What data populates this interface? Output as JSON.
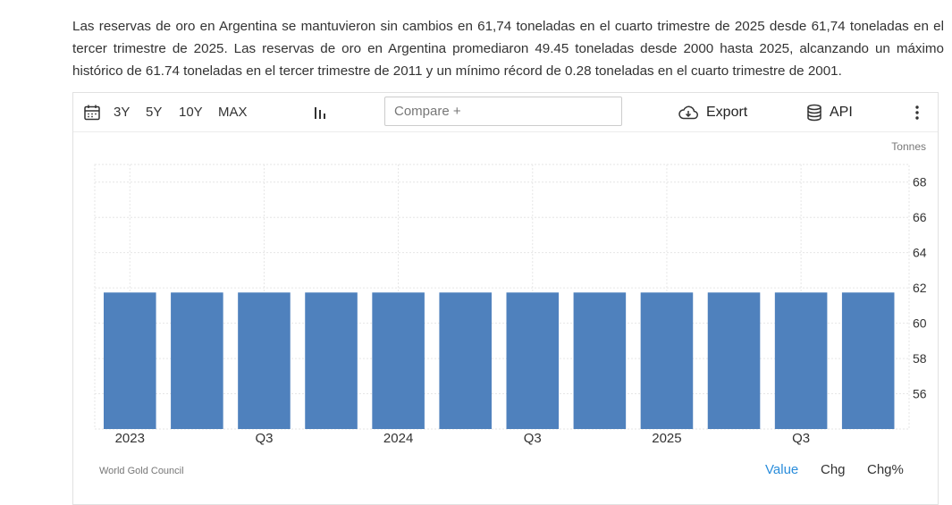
{
  "description": "Las reservas de oro en Argentina se mantuvieron sin cambios en 61,74 toneladas en el cuarto trimestre de 2025 desde 61,74 toneladas en el tercer trimestre de 2025. Las reservas de oro en Argentina promediaron 49.45 toneladas desde 2000 hasta 2025, alcanzando un máximo histórico de 61.74 toneladas en el tercer trimestre de 2011 y un mínimo récord de 0.28 toneladas en el cuarto trimestre de 2001.",
  "toolbar": {
    "ranges": [
      "3Y",
      "5Y",
      "10Y",
      "MAX"
    ],
    "compare_placeholder": "Compare +",
    "export_label": "Export",
    "api_label": "API",
    "icons": [
      "calendar-icon",
      "bar-chart-type-icon",
      "cloud-download-icon",
      "database-icon",
      "more-vert-icon"
    ]
  },
  "chart_data": {
    "type": "bar",
    "unit_label": "Tonnes",
    "categories": [
      "2023 Q1",
      "2023 Q2",
      "2023 Q3",
      "2023 Q4",
      "2024 Q1",
      "2024 Q2",
      "2024 Q3",
      "2024 Q4",
      "2025 Q1",
      "2025 Q2",
      "2025 Q3",
      "2025 Q4"
    ],
    "values": [
      61.74,
      61.74,
      61.74,
      61.74,
      61.74,
      61.74,
      61.74,
      61.74,
      61.74,
      61.74,
      61.74,
      61.74
    ],
    "x_tick_labels": [
      "2023",
      "",
      "Q3",
      "",
      "2024",
      "",
      "Q3",
      "",
      "2025",
      "",
      "Q3",
      ""
    ],
    "y_ticks": [
      56,
      58,
      60,
      62,
      64,
      66,
      68
    ],
    "ylim": [
      54,
      69
    ],
    "bar_color": "#4f81bd",
    "grid": true,
    "y_axis_side": "right"
  },
  "footer": {
    "source": "World Gold Council",
    "tabs": [
      "Value",
      "Chg",
      "Chg%"
    ],
    "active_tab": "Value",
    "active_color": "#2a8ddb"
  }
}
